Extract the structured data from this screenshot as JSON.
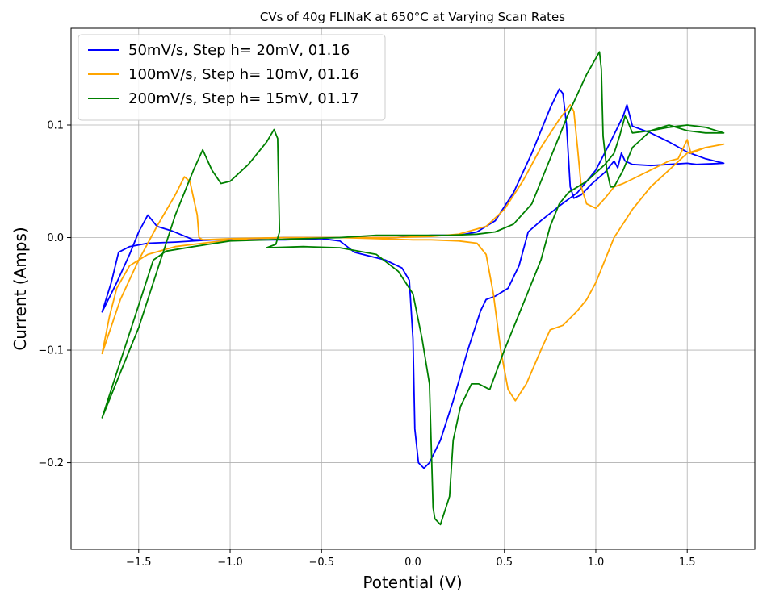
{
  "chart_data": {
    "type": "line",
    "title": "CVs of 40g FLINaK at 650°C at Varying Scan Rates",
    "xlabel": "Potential (V)",
    "ylabel": "Current (Amps)",
    "xlim": [
      -1.87,
      1.87
    ],
    "ylim": [
      -0.277,
      0.186
    ],
    "xticks": [
      -1.5,
      -1.0,
      -0.5,
      0.0,
      0.5,
      1.0,
      1.5
    ],
    "xtick_labels": [
      "−1.5",
      "−1.0",
      "−0.5",
      "0.0",
      "0.5",
      "1.0",
      "1.5"
    ],
    "yticks": [
      -0.2,
      -0.1,
      0.0,
      0.1
    ],
    "ytick_labels": [
      "−0.2",
      "−0.1",
      "0.0",
      "0.1"
    ],
    "grid": true,
    "legend_position": "top-left",
    "series": [
      {
        "name": "50mV/s, Step h= 20mV, 01.16",
        "color": "#0000ff",
        "points": [
          [
            -1.7,
            -0.066
          ],
          [
            -1.65,
            -0.04
          ],
          [
            -1.61,
            -0.013
          ],
          [
            -1.55,
            -0.008
          ],
          [
            -1.45,
            -0.005
          ],
          [
            -1.3,
            -0.004
          ],
          [
            -1.1,
            -0.002
          ],
          [
            -0.9,
            -0.001
          ],
          [
            -0.7,
            0.0
          ],
          [
            -0.5,
            0.0
          ],
          [
            -0.3,
            0.0
          ],
          [
            -0.1,
            0.0
          ],
          [
            0.1,
            0.002
          ],
          [
            0.25,
            0.002
          ],
          [
            0.35,
            0.005
          ],
          [
            0.45,
            0.015
          ],
          [
            0.55,
            0.04
          ],
          [
            0.65,
            0.075
          ],
          [
            0.75,
            0.115
          ],
          [
            0.8,
            0.132
          ],
          [
            0.82,
            0.128
          ],
          [
            0.84,
            0.1
          ],
          [
            0.86,
            0.045
          ],
          [
            0.88,
            0.035
          ],
          [
            0.92,
            0.038
          ],
          [
            0.98,
            0.048
          ],
          [
            1.05,
            0.058
          ],
          [
            1.1,
            0.068
          ],
          [
            1.12,
            0.062
          ],
          [
            1.14,
            0.075
          ],
          [
            1.16,
            0.068
          ],
          [
            1.2,
            0.065
          ],
          [
            1.3,
            0.064
          ],
          [
            1.4,
            0.065
          ],
          [
            1.5,
            0.066
          ],
          [
            1.55,
            0.065
          ],
          [
            1.7,
            0.066
          ],
          [
            1.6,
            0.07
          ],
          [
            1.5,
            0.076
          ],
          [
            1.4,
            0.085
          ],
          [
            1.3,
            0.093
          ],
          [
            1.2,
            0.099
          ],
          [
            1.17,
            0.118
          ],
          [
            1.15,
            0.108
          ],
          [
            1.08,
            0.085
          ],
          [
            1.0,
            0.06
          ],
          [
            0.9,
            0.04
          ],
          [
            0.8,
            0.028
          ],
          [
            0.7,
            0.015
          ],
          [
            0.63,
            0.005
          ],
          [
            0.58,
            -0.025
          ],
          [
            0.52,
            -0.045
          ],
          [
            0.45,
            -0.052
          ],
          [
            0.4,
            -0.055
          ],
          [
            0.37,
            -0.065
          ],
          [
            0.3,
            -0.1
          ],
          [
            0.22,
            -0.145
          ],
          [
            0.15,
            -0.18
          ],
          [
            0.09,
            -0.2
          ],
          [
            0.06,
            -0.205
          ],
          [
            0.03,
            -0.2
          ],
          [
            0.01,
            -0.17
          ],
          [
            0.0,
            -0.09
          ],
          [
            -0.02,
            -0.038
          ],
          [
            -0.06,
            -0.027
          ],
          [
            -0.15,
            -0.02
          ],
          [
            -0.25,
            -0.016
          ],
          [
            -0.32,
            -0.013
          ],
          [
            -0.36,
            -0.008
          ],
          [
            -0.4,
            -0.003
          ],
          [
            -0.5,
            -0.001
          ],
          [
            -0.7,
            -0.002
          ],
          [
            -1.0,
            -0.002
          ],
          [
            -1.2,
            -0.002
          ],
          [
            -1.32,
            0.006
          ],
          [
            -1.4,
            0.01
          ],
          [
            -1.45,
            0.02
          ],
          [
            -1.5,
            0.005
          ],
          [
            -1.55,
            -0.015
          ],
          [
            -1.62,
            -0.04
          ],
          [
            -1.7,
            -0.066
          ]
        ]
      },
      {
        "name": "100mV/s, Step h= 10mV, 01.16",
        "color": "#ffa500",
        "points": [
          [
            -1.7,
            -0.103
          ],
          [
            -1.66,
            -0.07
          ],
          [
            -1.62,
            -0.045
          ],
          [
            -1.55,
            -0.025
          ],
          [
            -1.45,
            -0.015
          ],
          [
            -1.3,
            -0.008
          ],
          [
            -1.1,
            -0.004
          ],
          [
            -0.9,
            -0.001
          ],
          [
            -0.7,
            0.0
          ],
          [
            -0.5,
            0.0
          ],
          [
            -0.3,
            0.0
          ],
          [
            -0.1,
            0.0
          ],
          [
            0.1,
            0.001
          ],
          [
            0.25,
            0.003
          ],
          [
            0.4,
            0.01
          ],
          [
            0.5,
            0.025
          ],
          [
            0.6,
            0.05
          ],
          [
            0.7,
            0.08
          ],
          [
            0.8,
            0.105
          ],
          [
            0.86,
            0.118
          ],
          [
            0.88,
            0.112
          ],
          [
            0.9,
            0.08
          ],
          [
            0.92,
            0.045
          ],
          [
            0.95,
            0.03
          ],
          [
            1.0,
            0.026
          ],
          [
            1.05,
            0.035
          ],
          [
            1.1,
            0.045
          ],
          [
            1.15,
            0.048
          ],
          [
            1.2,
            0.052
          ],
          [
            1.3,
            0.06
          ],
          [
            1.4,
            0.068
          ],
          [
            1.45,
            0.07
          ],
          [
            1.5,
            0.087
          ],
          [
            1.52,
            0.075
          ],
          [
            1.6,
            0.08
          ],
          [
            1.7,
            0.083
          ],
          [
            1.6,
            0.08
          ],
          [
            1.5,
            0.075
          ],
          [
            1.4,
            0.06
          ],
          [
            1.3,
            0.045
          ],
          [
            1.2,
            0.025
          ],
          [
            1.1,
            0.0
          ],
          [
            1.0,
            -0.04
          ],
          [
            0.95,
            -0.055
          ],
          [
            0.9,
            -0.065
          ],
          [
            0.82,
            -0.078
          ],
          [
            0.75,
            -0.082
          ],
          [
            0.7,
            -0.1
          ],
          [
            0.62,
            -0.13
          ],
          [
            0.56,
            -0.145
          ],
          [
            0.52,
            -0.135
          ],
          [
            0.48,
            -0.1
          ],
          [
            0.44,
            -0.05
          ],
          [
            0.4,
            -0.015
          ],
          [
            0.35,
            -0.005
          ],
          [
            0.25,
            -0.003
          ],
          [
            0.1,
            -0.002
          ],
          [
            0.0,
            -0.002
          ],
          [
            -0.2,
            -0.001
          ],
          [
            -0.4,
            0.0
          ],
          [
            -0.7,
            0.0
          ],
          [
            -1.0,
            -0.001
          ],
          [
            -1.15,
            -0.002
          ],
          [
            -1.17,
            0.0
          ],
          [
            -1.18,
            0.02
          ],
          [
            -1.22,
            0.05
          ],
          [
            -1.25,
            0.054
          ],
          [
            -1.3,
            0.038
          ],
          [
            -1.4,
            0.01
          ],
          [
            -1.5,
            -0.02
          ],
          [
            -1.6,
            -0.055
          ],
          [
            -1.7,
            -0.103
          ]
        ]
      },
      {
        "name": "200mV/s, Step h= 15mV, 01.17",
        "color": "#008000",
        "points": [
          [
            -1.7,
            -0.16
          ],
          [
            -1.6,
            -0.11
          ],
          [
            -1.5,
            -0.06
          ],
          [
            -1.42,
            -0.02
          ],
          [
            -1.35,
            -0.012
          ],
          [
            -1.2,
            -0.008
          ],
          [
            -1.0,
            -0.003
          ],
          [
            -0.8,
            -0.002
          ],
          [
            -0.6,
            -0.001
          ],
          [
            -0.4,
            0.0
          ],
          [
            -0.2,
            0.002
          ],
          [
            0.0,
            0.002
          ],
          [
            0.2,
            0.002
          ],
          [
            0.35,
            0.003
          ],
          [
            0.45,
            0.005
          ],
          [
            0.55,
            0.012
          ],
          [
            0.65,
            0.03
          ],
          [
            0.75,
            0.07
          ],
          [
            0.85,
            0.11
          ],
          [
            0.95,
            0.145
          ],
          [
            1.02,
            0.165
          ],
          [
            1.03,
            0.15
          ],
          [
            1.04,
            0.09
          ],
          [
            1.06,
            0.06
          ],
          [
            1.08,
            0.045
          ],
          [
            1.1,
            0.045
          ],
          [
            1.15,
            0.06
          ],
          [
            1.2,
            0.08
          ],
          [
            1.3,
            0.095
          ],
          [
            1.4,
            0.1
          ],
          [
            1.5,
            0.095
          ],
          [
            1.6,
            0.093
          ],
          [
            1.7,
            0.093
          ],
          [
            1.6,
            0.098
          ],
          [
            1.5,
            0.1
          ],
          [
            1.4,
            0.098
          ],
          [
            1.3,
            0.095
          ],
          [
            1.2,
            0.093
          ],
          [
            1.17,
            0.105
          ],
          [
            1.16,
            0.108
          ],
          [
            1.13,
            0.09
          ],
          [
            1.1,
            0.075
          ],
          [
            1.05,
            0.065
          ],
          [
            0.95,
            0.05
          ],
          [
            0.85,
            0.04
          ],
          [
            0.8,
            0.03
          ],
          [
            0.75,
            0.01
          ],
          [
            0.7,
            -0.02
          ],
          [
            0.6,
            -0.06
          ],
          [
            0.5,
            -0.1
          ],
          [
            0.42,
            -0.135
          ],
          [
            0.36,
            -0.13
          ],
          [
            0.32,
            -0.13
          ],
          [
            0.26,
            -0.15
          ],
          [
            0.22,
            -0.18
          ],
          [
            0.2,
            -0.23
          ],
          [
            0.15,
            -0.255
          ],
          [
            0.12,
            -0.25
          ],
          [
            0.11,
            -0.24
          ],
          [
            0.09,
            -0.13
          ],
          [
            0.05,
            -0.09
          ],
          [
            0.0,
            -0.05
          ],
          [
            -0.08,
            -0.03
          ],
          [
            -0.2,
            -0.015
          ],
          [
            -0.4,
            -0.009
          ],
          [
            -0.6,
            -0.008
          ],
          [
            -0.8,
            -0.009
          ],
          [
            -0.75,
            -0.006
          ],
          [
            -0.73,
            0.005
          ],
          [
            -0.74,
            0.088
          ],
          [
            -0.76,
            0.096
          ],
          [
            -0.8,
            0.085
          ],
          [
            -0.9,
            0.065
          ],
          [
            -1.0,
            0.05
          ],
          [
            -1.05,
            0.048
          ],
          [
            -1.1,
            0.06
          ],
          [
            -1.15,
            0.078
          ],
          [
            -1.2,
            0.06
          ],
          [
            -1.3,
            0.02
          ],
          [
            -1.4,
            -0.03
          ],
          [
            -1.5,
            -0.08
          ],
          [
            -1.6,
            -0.12
          ],
          [
            -1.7,
            -0.16
          ]
        ]
      }
    ]
  }
}
